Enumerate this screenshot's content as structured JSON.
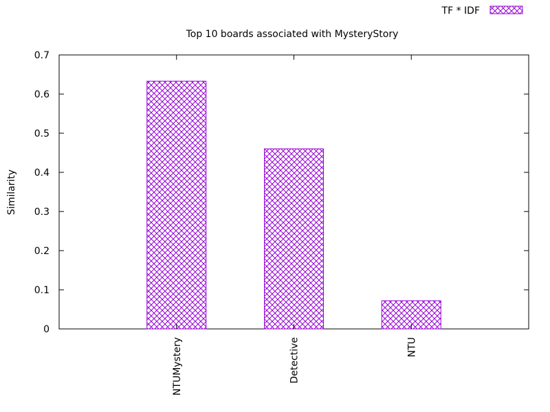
{
  "chart_data": {
    "type": "bar",
    "title": "Top 10 boards associated with MysteryStory",
    "xlabel": "",
    "ylabel": "Similarity",
    "categories": [
      "NTUMystery",
      "Detective",
      "NTU"
    ],
    "series": [
      {
        "name": "TF * IDF",
        "values": [
          0.633,
          0.46,
          0.072
        ],
        "color": "#9400d3"
      }
    ],
    "ylim": [
      0,
      0.7
    ],
    "yticks": [
      "0",
      "0.1",
      "0.2",
      "0.3",
      "0.4",
      "0.5",
      "0.6",
      "0.7"
    ],
    "grid": false,
    "legend": "top-right",
    "fill_pattern": "crosshatch"
  }
}
